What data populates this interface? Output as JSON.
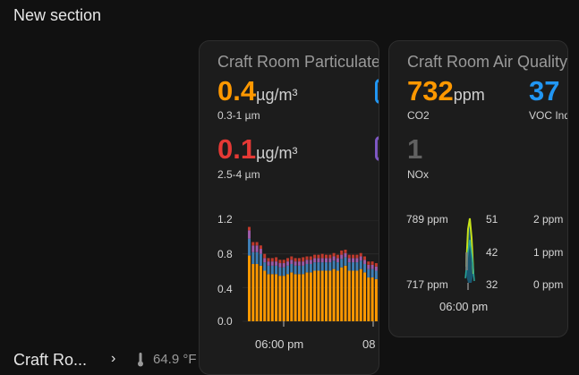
{
  "section_title": "New section",
  "colors": {
    "pm_low": "#ff9800",
    "pm_high": "#e53935",
    "co2": "#ff9800",
    "voc": "#2196f3",
    "nox": "#616161",
    "bar_blue": "#3f7fb5",
    "bar_purple": "#9c5aa8",
    "bar_red": "#c0392b"
  },
  "particulate_card": {
    "title": "Craft Room Particulate",
    "metric1": {
      "value": "0.4",
      "unit": "µg/m³",
      "label": "0.3-1 µm"
    },
    "metric2": {
      "value": "0.1",
      "unit": "µg/m³",
      "label": "2.5-4 µm"
    },
    "chart_data": {
      "type": "bar",
      "stacked": true,
      "y_ticks": [
        "1.2",
        "0.8",
        "0.4",
        "0.0"
      ],
      "ylim": [
        0,
        1.2
      ],
      "x_ticks": [
        "06:00 pm",
        "08"
      ],
      "series": [
        {
          "values": [
            0.78,
            0.68,
            0.68,
            0.66,
            0.6,
            0.56,
            0.56,
            0.56,
            0.54,
            0.54,
            0.56,
            0.58,
            0.56,
            0.56,
            0.56,
            0.58,
            0.58,
            0.6,
            0.6,
            0.6,
            0.6,
            0.6,
            0.62,
            0.6,
            0.64,
            0.66,
            0.6,
            0.6,
            0.6,
            0.62,
            0.58,
            0.52,
            0.52,
            0.5,
            0.54,
            0.54
          ]
        },
        {
          "values": [
            0.2,
            0.14,
            0.14,
            0.14,
            0.1,
            0.1,
            0.1,
            0.1,
            0.1,
            0.1,
            0.1,
            0.1,
            0.1,
            0.1,
            0.1,
            0.1,
            0.1,
            0.1,
            0.1,
            0.1,
            0.1,
            0.1,
            0.1,
            0.1,
            0.1,
            0.1,
            0.1,
            0.1,
            0.1,
            0.1,
            0.1,
            0.1,
            0.1,
            0.1,
            0.1,
            0.1
          ]
        },
        {
          "values": [
            0.1,
            0.08,
            0.08,
            0.06,
            0.05,
            0.05,
            0.05,
            0.05,
            0.05,
            0.05,
            0.05,
            0.05,
            0.05,
            0.05,
            0.05,
            0.05,
            0.05,
            0.05,
            0.05,
            0.05,
            0.05,
            0.05,
            0.05,
            0.05,
            0.05,
            0.05,
            0.05,
            0.05,
            0.05,
            0.05,
            0.05,
            0.05,
            0.05,
            0.05,
            0.05,
            0.05
          ]
        },
        {
          "values": [
            0.04,
            0.04,
            0.04,
            0.04,
            0.05,
            0.04,
            0.04,
            0.05,
            0.04,
            0.04,
            0.04,
            0.04,
            0.04,
            0.04,
            0.05,
            0.04,
            0.04,
            0.04,
            0.04,
            0.05,
            0.04,
            0.04,
            0.04,
            0.04,
            0.05,
            0.04,
            0.04,
            0.04,
            0.04,
            0.04,
            0.04,
            0.04,
            0.04,
            0.04,
            0.04,
            0.04
          ]
        }
      ]
    }
  },
  "air_card": {
    "title": "Craft Room Air Quality",
    "co2": {
      "value": "732",
      "unit": "ppm",
      "label": "CO2"
    },
    "voc": {
      "value": "37",
      "label": "VOC Index"
    },
    "nox": {
      "value": "1",
      "label": "NOx"
    },
    "chart_data": {
      "type": "line",
      "axis_co2": [
        "789 ppm",
        "717 ppm"
      ],
      "axis_mid": [
        "51",
        "42",
        "32"
      ],
      "axis_right": [
        "2 ppm",
        "1 ppm",
        "0 ppm"
      ],
      "x_ticks": [
        "06:00 pm"
      ]
    }
  },
  "footer": {
    "name": "Craft Ro...",
    "chevron": "›",
    "thermometer_icon": "thermometer-icon",
    "temperature": "64.9 °F"
  }
}
